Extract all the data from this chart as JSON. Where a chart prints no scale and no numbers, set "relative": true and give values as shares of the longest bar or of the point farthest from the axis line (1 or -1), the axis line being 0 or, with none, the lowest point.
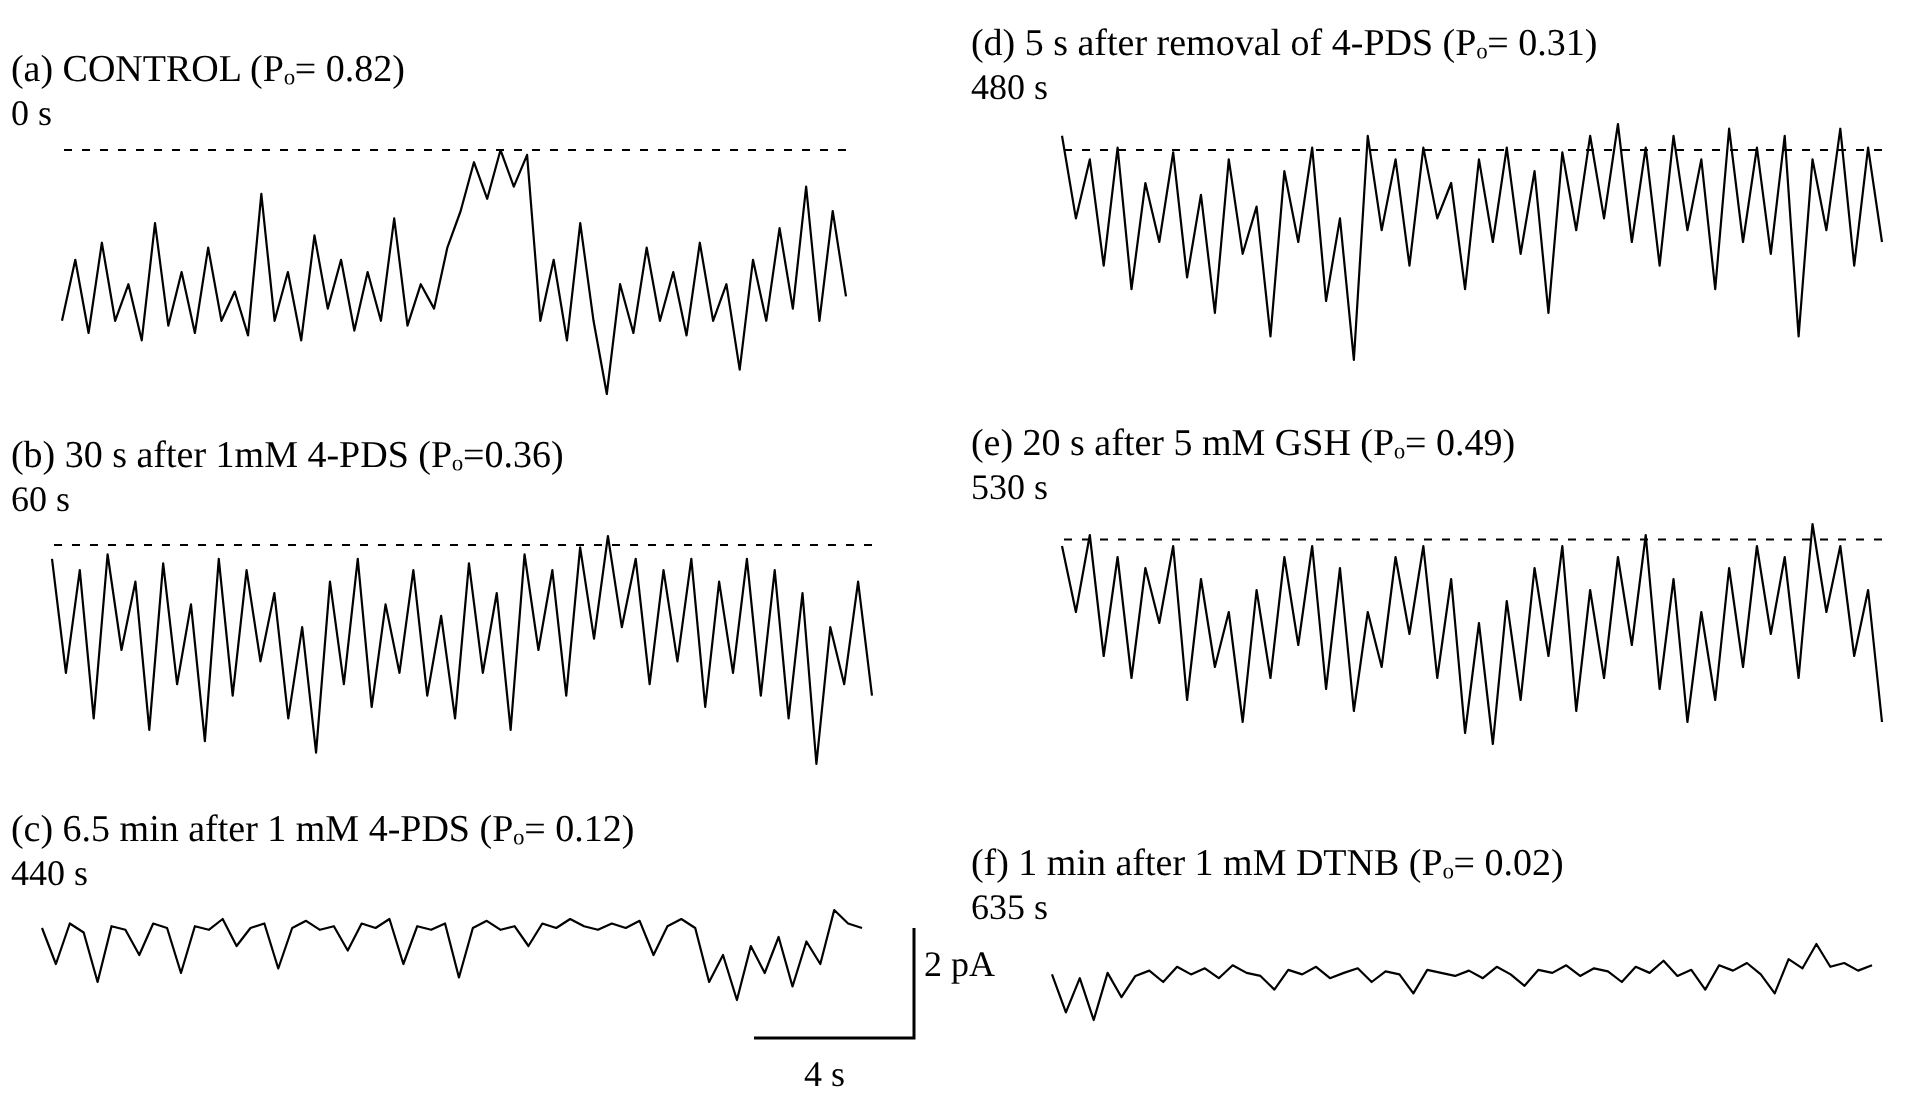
{
  "chart_data": [
    {
      "type": "line",
      "title": "(a)  CONTROL  (Pₒ= 0.82)",
      "subtitle": "0 s",
      "relative": true,
      "categories": [
        null,
        null,
        null,
        null,
        null,
        null,
        null,
        null,
        null,
        null,
        null,
        null,
        null,
        null,
        null,
        null,
        null,
        null,
        null,
        null,
        null,
        null,
        null,
        null,
        null,
        null,
        null,
        null,
        null,
        null,
        null,
        null,
        null,
        null,
        null,
        null,
        null,
        null,
        null,
        null,
        null,
        null,
        null,
        null,
        null,
        null,
        null,
        null,
        null,
        null,
        null,
        null,
        null,
        null,
        null,
        null,
        null,
        null,
        null,
        null
      ],
      "series": [
        {
          "color": "#000000",
          "values": [
            0.3,
            0.55,
            0.25,
            0.62,
            0.3,
            0.45,
            0.22,
            0.7,
            0.28,
            0.5,
            0.25,
            0.6,
            0.3,
            0.42,
            0.24,
            0.82,
            0.3,
            0.5,
            0.22,
            0.65,
            0.35,
            0.55,
            0.26,
            0.5,
            0.3,
            0.72,
            0.28,
            0.45,
            0.35,
            0.6,
            0.75,
            0.95,
            0.8,
            1,
            0.85,
            0.98,
            0.3,
            0.55,
            0.22,
            0.7,
            0.3,
            0,
            0.45,
            0.25,
            0.6,
            0.3,
            0.5,
            0.24,
            0.62,
            0.3,
            0.45,
            0.1,
            0.55,
            0.3,
            0.68,
            0.35,
            0.85,
            0.3,
            0.75,
            0.4
          ]
        }
      ],
      "ref_lines": [
        {
          "axis": "y",
          "value": 1,
          "line_style": "dashed"
        }
      ]
    },
    {
      "type": "line",
      "title": "(b) 30 s after 1mM 4-PDS  (Pₒ=0.36)",
      "subtitle": "60 s",
      "relative": true,
      "categories": [
        null,
        null,
        null,
        null,
        null,
        null,
        null,
        null,
        null,
        null,
        null,
        null,
        null,
        null,
        null,
        null,
        null,
        null,
        null,
        null,
        null,
        null,
        null,
        null,
        null,
        null,
        null,
        null,
        null,
        null,
        null,
        null,
        null,
        null,
        null,
        null,
        null,
        null,
        null,
        null,
        null,
        null,
        null,
        null,
        null,
        null,
        null,
        null,
        null,
        null,
        null,
        null,
        null,
        null,
        null,
        null,
        null,
        null,
        null,
        null
      ],
      "series": [
        {
          "color": "#000000",
          "values": [
            0.9,
            0.4,
            0.85,
            0.2,
            0.92,
            0.5,
            0.8,
            0.15,
            0.88,
            0.35,
            0.7,
            0.1,
            0.9,
            0.3,
            0.85,
            0.45,
            0.75,
            0.2,
            0.6,
            0.05,
            0.8,
            0.35,
            0.9,
            0.25,
            0.7,
            0.4,
            0.85,
            0.3,
            0.65,
            0.2,
            0.88,
            0.4,
            0.75,
            0.15,
            0.92,
            0.5,
            0.85,
            0.3,
            0.95,
            0.55,
            1,
            0.6,
            0.9,
            0.35,
            0.85,
            0.45,
            0.9,
            0.25,
            0.8,
            0.4,
            0.9,
            0.3,
            0.85,
            0.2,
            0.75,
            0,
            0.6,
            0.35,
            0.8,
            0.3
          ]
        }
      ],
      "ref_lines": [
        {
          "axis": "y",
          "value": 0.96,
          "line_style": "dashed"
        }
      ]
    },
    {
      "type": "line",
      "title": "(c) 6.5 min after 1 mM 4-PDS  (Pₒ= 0.12)",
      "subtitle": "440 s",
      "relative": true,
      "categories": [
        null,
        null,
        null,
        null,
        null,
        null,
        null,
        null,
        null,
        null,
        null,
        null,
        null,
        null,
        null,
        null,
        null,
        null,
        null,
        null,
        null,
        null,
        null,
        null,
        null,
        null,
        null,
        null,
        null,
        null,
        null,
        null,
        null,
        null,
        null,
        null,
        null,
        null,
        null,
        null,
        null,
        null,
        null,
        null,
        null,
        null,
        null,
        null,
        null,
        null,
        null,
        null,
        null,
        null,
        null,
        null,
        null,
        null,
        null,
        null
      ],
      "series": [
        {
          "color": "#000000",
          "values": [
            0.8,
            0.4,
            0.85,
            0.75,
            0.2,
            0.82,
            0.78,
            0.5,
            0.85,
            0.8,
            0.3,
            0.82,
            0.78,
            0.9,
            0.6,
            0.8,
            0.85,
            0.35,
            0.8,
            0.88,
            0.78,
            0.82,
            0.55,
            0.85,
            0.8,
            0.9,
            0.4,
            0.82,
            0.78,
            0.85,
            0.25,
            0.8,
            0.88,
            0.78,
            0.82,
            0.6,
            0.85,
            0.8,
            0.9,
            0.82,
            0.78,
            0.85,
            0.8,
            0.88,
            0.5,
            0.82,
            0.9,
            0.8,
            0.2,
            0.5,
            0,
            0.6,
            0.3,
            0.7,
            0.15,
            0.65,
            0.4,
            1,
            0.85,
            0.8
          ]
        }
      ],
      "annotations": [
        "2 pA",
        "4 s"
      ]
    },
    {
      "type": "line",
      "title": "(d)   5 s after removal of  4-PDS  (Pₒ= 0.31)",
      "subtitle": "480 s",
      "relative": true,
      "categories": [
        null,
        null,
        null,
        null,
        null,
        null,
        null,
        null,
        null,
        null,
        null,
        null,
        null,
        null,
        null,
        null,
        null,
        null,
        null,
        null,
        null,
        null,
        null,
        null,
        null,
        null,
        null,
        null,
        null,
        null,
        null,
        null,
        null,
        null,
        null,
        null,
        null,
        null,
        null,
        null,
        null,
        null,
        null,
        null,
        null,
        null,
        null,
        null,
        null,
        null,
        null,
        null,
        null,
        null,
        null,
        null,
        null,
        null,
        null,
        null
      ],
      "series": [
        {
          "color": "#000000",
          "values": [
            0.95,
            0.6,
            0.85,
            0.4,
            0.9,
            0.3,
            0.75,
            0.5,
            0.88,
            0.35,
            0.7,
            0.2,
            0.85,
            0.45,
            0.65,
            0.1,
            0.8,
            0.5,
            0.9,
            0.25,
            0.6,
            0,
            0.95,
            0.55,
            0.85,
            0.4,
            0.9,
            0.6,
            0.75,
            0.3,
            0.85,
            0.5,
            0.9,
            0.45,
            0.8,
            0.2,
            0.88,
            0.55,
            0.95,
            0.6,
            1,
            0.5,
            0.9,
            0.4,
            0.95,
            0.55,
            0.85,
            0.3,
            0.98,
            0.5,
            0.9,
            0.45,
            0.95,
            0.1,
            0.85,
            0.55,
            0.98,
            0.4,
            0.9,
            0.5
          ]
        }
      ],
      "ref_lines": [
        {
          "axis": "y",
          "value": 0.89,
          "line_style": "dashed"
        }
      ]
    },
    {
      "type": "line",
      "title": "(e)    20 s after 5 mM  GSH  (Pₒ= 0.49)",
      "subtitle": "530 s",
      "relative": true,
      "categories": [
        null,
        null,
        null,
        null,
        null,
        null,
        null,
        null,
        null,
        null,
        null,
        null,
        null,
        null,
        null,
        null,
        null,
        null,
        null,
        null,
        null,
        null,
        null,
        null,
        null,
        null,
        null,
        null,
        null,
        null,
        null,
        null,
        null,
        null,
        null,
        null,
        null,
        null,
        null,
        null,
        null,
        null,
        null,
        null,
        null,
        null,
        null,
        null,
        null,
        null,
        null,
        null,
        null,
        null,
        null,
        null,
        null,
        null,
        null,
        null
      ],
      "series": [
        {
          "color": "#000000",
          "values": [
            0.9,
            0.6,
            0.95,
            0.4,
            0.85,
            0.3,
            0.8,
            0.55,
            0.9,
            0.2,
            0.75,
            0.35,
            0.6,
            0.1,
            0.7,
            0.3,
            0.85,
            0.45,
            0.9,
            0.25,
            0.8,
            0.15,
            0.6,
            0.35,
            0.85,
            0.5,
            0.9,
            0.3,
            0.75,
            0.05,
            0.55,
            0,
            0.65,
            0.2,
            0.8,
            0.4,
            0.9,
            0.15,
            0.7,
            0.3,
            0.85,
            0.45,
            0.95,
            0.25,
            0.75,
            0.1,
            0.6,
            0.2,
            0.8,
            0.35,
            0.9,
            0.5,
            0.85,
            0.3,
            1,
            0.6,
            0.9,
            0.4,
            0.7,
            0.1
          ]
        }
      ],
      "ref_lines": [
        {
          "axis": "y",
          "value": 0.93,
          "line_style": "dashed"
        }
      ]
    },
    {
      "type": "line",
      "title": "(f)  1 min after 1 mM DTNB  (Pₒ= 0.02)",
      "subtitle": "635 s",
      "relative": true,
      "categories": [
        null,
        null,
        null,
        null,
        null,
        null,
        null,
        null,
        null,
        null,
        null,
        null,
        null,
        null,
        null,
        null,
        null,
        null,
        null,
        null,
        null,
        null,
        null,
        null,
        null,
        null,
        null,
        null,
        null,
        null,
        null,
        null,
        null,
        null,
        null,
        null,
        null,
        null,
        null,
        null,
        null,
        null,
        null,
        null,
        null,
        null,
        null,
        null,
        null,
        null,
        null,
        null,
        null,
        null,
        null,
        null,
        null,
        null,
        null,
        null
      ],
      "series": [
        {
          "color": "#000000",
          "values": [
            0.6,
            0.1,
            0.55,
            0,
            0.62,
            0.3,
            0.58,
            0.65,
            0.5,
            0.7,
            0.6,
            0.68,
            0.55,
            0.72,
            0.62,
            0.58,
            0.4,
            0.66,
            0.6,
            0.7,
            0.55,
            0.62,
            0.68,
            0.5,
            0.64,
            0.6,
            0.35,
            0.66,
            0.62,
            0.58,
            0.65,
            0.55,
            0.7,
            0.6,
            0.45,
            0.66,
            0.62,
            0.72,
            0.58,
            0.68,
            0.64,
            0.5,
            0.7,
            0.62,
            0.78,
            0.58,
            0.66,
            0.4,
            0.72,
            0.65,
            0.75,
            0.6,
            0.35,
            0.8,
            0.68,
            1,
            0.7,
            0.75,
            0.65,
            0.72
          ]
        }
      ]
    }
  ]
}
